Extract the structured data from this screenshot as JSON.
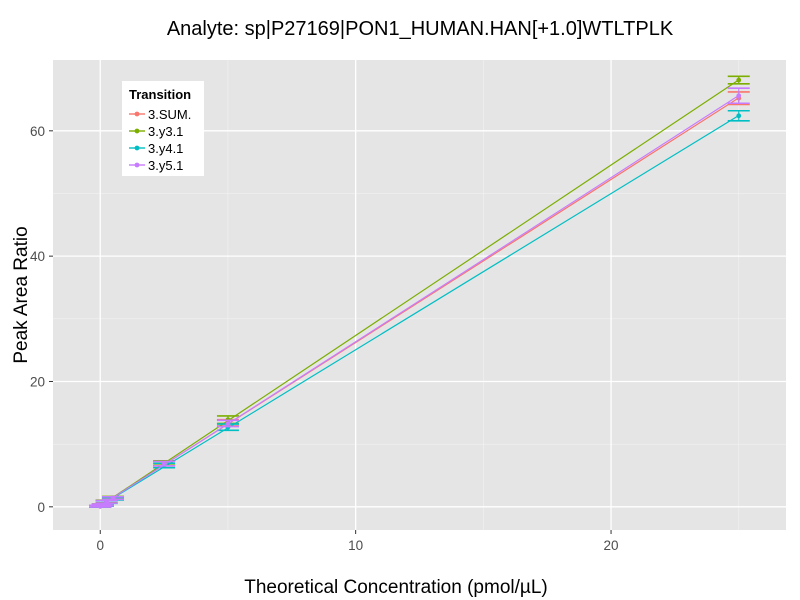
{
  "chart_data": {
    "type": "line",
    "title": "Analyte: sp|P27169|PON1_HUMAN.HAN[+1.0]WTLTPLK",
    "xlabel": "Theoretical Concentration (pmol/µL)",
    "ylabel": "Peak Area Ratio",
    "xlim": [
      -1.85,
      26.85
    ],
    "ylim": [
      -3.7,
      71.3
    ],
    "x_ticks": [
      0,
      10,
      20
    ],
    "y_ticks": [
      0,
      20,
      40,
      60
    ],
    "grid": true,
    "legend": {
      "title": "Transition",
      "placement": "top-left"
    },
    "x": [
      0,
      0.1,
      0.25,
      0.5,
      2.5,
      5,
      25
    ],
    "series": [
      {
        "name": "3.SUM.",
        "color": "#F8766D",
        "values": [
          0.1,
          0.3,
          0.8,
          1.4,
          6.9,
          13.4,
          65.2
        ],
        "errors": [
          0.15,
          0.15,
          0.2,
          0.2,
          0.35,
          0.5,
          1.0
        ]
      },
      {
        "name": "3.y3.1",
        "color": "#7CAE00",
        "values": [
          0.1,
          0.3,
          0.85,
          1.45,
          7.0,
          13.9,
          68.1
        ],
        "errors": [
          0.15,
          0.15,
          0.2,
          0.2,
          0.35,
          0.6,
          0.6
        ]
      },
      {
        "name": "3.y4.1",
        "color": "#00BFC4",
        "values": [
          0.1,
          0.25,
          0.75,
          1.3,
          6.6,
          12.7,
          62.4
        ],
        "errors": [
          0.15,
          0.15,
          0.2,
          0.2,
          0.35,
          0.5,
          0.8
        ]
      },
      {
        "name": "3.y5.1",
        "color": "#C77CFF",
        "values": [
          0.1,
          0.3,
          0.8,
          1.4,
          6.9,
          13.3,
          65.6
        ],
        "errors": [
          0.15,
          0.15,
          0.2,
          0.2,
          0.35,
          0.5,
          1.2
        ]
      }
    ]
  }
}
